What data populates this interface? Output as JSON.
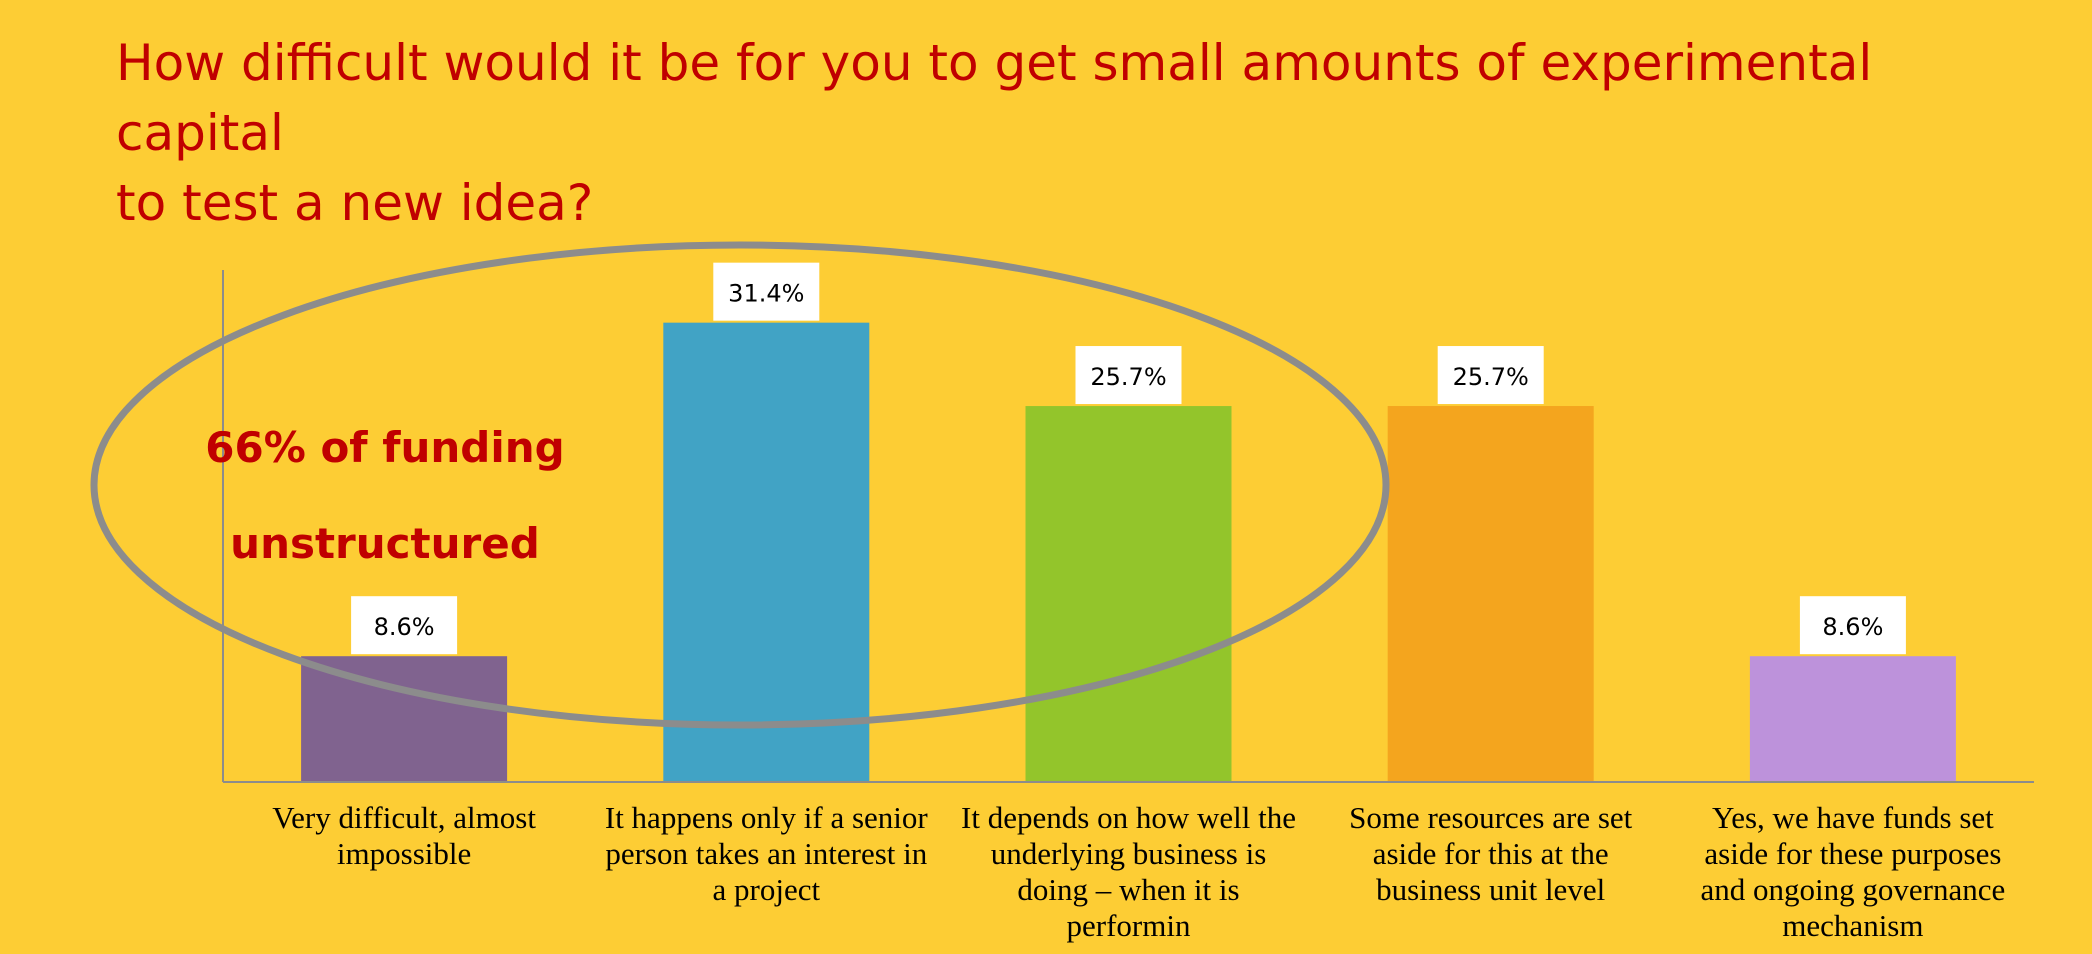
{
  "chart_data": {
    "type": "bar",
    "title": "How difficult would it be for you to get small amounts of experimental capital to test a new idea?",
    "title_lines": [
      "How difficult would it be for you to get small amounts of experimental capital",
      "to test a new idea?"
    ],
    "categories": [
      "Very difficult, almost impossible",
      "It happens only if a senior person takes an interest in a project",
      "It depends on how well the underlying business is doing – when it is performin",
      "Some resources are set aside for this at the business unit level",
      "Yes, we have funds set aside for these purposes and ongoing governance mechanism"
    ],
    "values": [
      8.6,
      31.4,
      25.7,
      25.7,
      8.6
    ],
    "data_labels": [
      "8.6%",
      "31.4%",
      "25.7%",
      "25.7%",
      "8.6%"
    ],
    "colors": [
      "#80638F",
      "#41A3C5",
      "#93C52B",
      "#F4A51E",
      "#BD92DB"
    ],
    "ylim": [
      0,
      35
    ],
    "grid": false,
    "annotation": {
      "lines": [
        "66% of funding",
        "unstructured"
      ],
      "color": "#C00000",
      "ellipse_color": "#8C8C8C"
    }
  }
}
